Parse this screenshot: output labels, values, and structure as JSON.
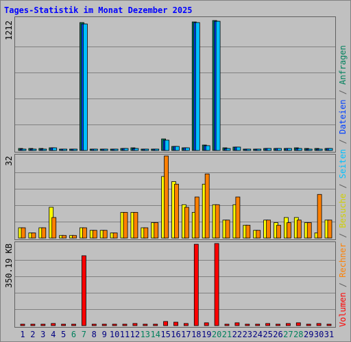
{
  "chart_data": [
    {
      "type": "bar",
      "title": "Tages-Statistik im Monat Dezember 2025",
      "ylim": [
        0,
        1212
      ],
      "yticks": [
        1212
      ],
      "series": [
        {
          "name": "Anfragen",
          "color": "#00805c",
          "values": [
            19,
            19,
            19,
            25,
            13,
            13,
            1193,
            13,
            13,
            13,
            19,
            25,
            13,
            13,
            108,
            38,
            25,
            1199,
            51,
            1212,
            25,
            32,
            13,
            13,
            19,
            19,
            19,
            25,
            19,
            19,
            19
          ]
        },
        {
          "name": "Dateien",
          "color": "#0040ff",
          "values": [
            13,
            13,
            13,
            25,
            13,
            13,
            1180,
            13,
            13,
            13,
            19,
            19,
            13,
            13,
            96,
            38,
            25,
            1193,
            45,
            1205,
            19,
            32,
            13,
            13,
            19,
            19,
            19,
            19,
            13,
            13,
            19
          ]
        },
        {
          "name": "Seiten",
          "color": "#00c0ff",
          "values": [
            13,
            13,
            13,
            25,
            13,
            13,
            1180,
            13,
            13,
            13,
            19,
            19,
            13,
            13,
            96,
            38,
            25,
            1193,
            45,
            1205,
            19,
            32,
            13,
            13,
            19,
            19,
            19,
            19,
            13,
            13,
            19
          ]
        }
      ]
    },
    {
      "type": "bar",
      "ylim": [
        0,
        32
      ],
      "yticks": [
        32
      ],
      "series": [
        {
          "name": "Besuche",
          "color": "#ffff00",
          "values": [
            4,
            2,
            4,
            12,
            1,
            1,
            4,
            3,
            3,
            2,
            10,
            10,
            4,
            6,
            24,
            22,
            13,
            10,
            21,
            13,
            7,
            13,
            5,
            3,
            7,
            6,
            8,
            8,
            6,
            2,
            7
          ]
        },
        {
          "name": "Rechner",
          "color": "#ff8000",
          "values": [
            4,
            2,
            4,
            8,
            1,
            1,
            4,
            3,
            3,
            2,
            10,
            10,
            4,
            6,
            32,
            21,
            12,
            16,
            25,
            13,
            7,
            16,
            5,
            3,
            7,
            5,
            6,
            7,
            6,
            17,
            7
          ]
        }
      ]
    },
    {
      "type": "bar",
      "ylim": [
        0,
        350.19
      ],
      "yticks": [
        {
          "value": 350.19,
          "label": "350.19 KB"
        }
      ],
      "categories": [
        "1",
        "2",
        "3",
        "4",
        "5",
        "6",
        "7",
        "8",
        "9",
        "10",
        "11",
        "12",
        "13",
        "14",
        "15",
        "16",
        "17",
        "18",
        "19",
        "20",
        "21",
        "22",
        "23",
        "24",
        "25",
        "26",
        "27",
        "28",
        "29",
        "30",
        "31"
      ],
      "category_colors": [
        "#000080",
        "#000080",
        "#000080",
        "#000080",
        "#000080",
        "#00805c",
        "#00805c",
        "#000080",
        "#000080",
        "#000080",
        "#000080",
        "#000080",
        "#00805c",
        "#00805c",
        "#000080",
        "#000080",
        "#000080",
        "#000080",
        "#000080",
        "#00805c",
        "#00805c",
        "#000080",
        "#000080",
        "#000080",
        "#000080",
        "#000080",
        "#00805c",
        "#00805c",
        "#000080",
        "#000080",
        "#000080"
      ],
      "series": [
        {
          "name": "Volumen",
          "color": "#ff0000",
          "values": [
            6,
            6,
            6,
            9,
            6,
            6,
            298,
            6,
            6,
            6,
            6,
            9,
            6,
            6,
            17.5,
            14.6,
            9,
            347,
            12,
            350.19,
            6,
            12,
            6,
            6,
            9,
            6,
            9,
            12,
            6,
            9,
            6
          ]
        }
      ]
    }
  ],
  "legend_separator": " / "
}
